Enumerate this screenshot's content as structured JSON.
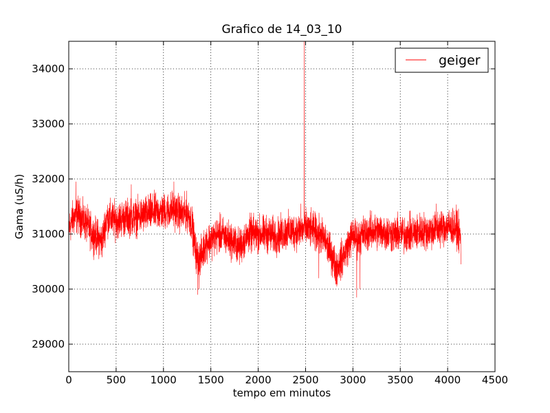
{
  "chart_data": {
    "type": "line",
    "title": "Grafico de 14_03_10",
    "xlabel": "tempo em minutos",
    "ylabel": "Gama (uS/h)",
    "xlim": [
      0,
      4500
    ],
    "ylim": [
      28500,
      34500
    ],
    "xticks": [
      0,
      500,
      1000,
      1500,
      2000,
      2500,
      3000,
      3500,
      4000,
      4500
    ],
    "yticks": [
      29000,
      30000,
      31000,
      32000,
      33000,
      34000
    ],
    "grid": true,
    "legend": {
      "position": "top-right",
      "entries": [
        "geiger"
      ]
    },
    "series": [
      {
        "name": "geiger",
        "color": "#ff0000",
        "x_start": 0,
        "x_end": 4140,
        "noise_amplitude": 160,
        "baseline": [
          [
            0,
            31100
          ],
          [
            50,
            31300
          ],
          [
            100,
            31350
          ],
          [
            150,
            31250
          ],
          [
            200,
            31150
          ],
          [
            250,
            31000
          ],
          [
            300,
            30950
          ],
          [
            350,
            30850
          ],
          [
            400,
            31300
          ],
          [
            500,
            31250
          ],
          [
            600,
            31300
          ],
          [
            700,
            31300
          ],
          [
            800,
            31350
          ],
          [
            900,
            31400
          ],
          [
            1000,
            31400
          ],
          [
            1100,
            31450
          ],
          [
            1200,
            31350
          ],
          [
            1250,
            31400
          ],
          [
            1300,
            31200
          ],
          [
            1340,
            30650
          ],
          [
            1370,
            30550
          ],
          [
            1400,
            30600
          ],
          [
            1450,
            30850
          ],
          [
            1500,
            30900
          ],
          [
            1600,
            31000
          ],
          [
            1700,
            30900
          ],
          [
            1780,
            30800
          ],
          [
            1800,
            30750
          ],
          [
            1900,
            31000
          ],
          [
            2000,
            31000
          ],
          [
            2100,
            31000
          ],
          [
            2200,
            30950
          ],
          [
            2300,
            31050
          ],
          [
            2400,
            31050
          ],
          [
            2500,
            31100
          ],
          [
            2600,
            31050
          ],
          [
            2700,
            30900
          ],
          [
            2780,
            30600
          ],
          [
            2820,
            30400
          ],
          [
            2850,
            30450
          ],
          [
            2900,
            30600
          ],
          [
            2950,
            30800
          ],
          [
            3000,
            31000
          ],
          [
            3050,
            30900
          ],
          [
            3100,
            31000
          ],
          [
            3200,
            31050
          ],
          [
            3300,
            31050
          ],
          [
            3400,
            31000
          ],
          [
            3500,
            31000
          ],
          [
            3600,
            31000
          ],
          [
            3700,
            31050
          ],
          [
            3800,
            31050
          ],
          [
            3900,
            31100
          ],
          [
            4000,
            31150
          ],
          [
            4100,
            31100
          ],
          [
            4140,
            30900
          ]
        ],
        "spikes": [
          [
            75,
            31950
          ],
          [
            95,
            31600
          ],
          [
            660,
            31900
          ],
          [
            1110,
            31950
          ],
          [
            1360,
            29900
          ],
          [
            1375,
            30000
          ],
          [
            2450,
            31550
          ],
          [
            2485,
            34500
          ],
          [
            2490,
            31400
          ],
          [
            2640,
            30200
          ],
          [
            2830,
            30050
          ],
          [
            3040,
            29850
          ],
          [
            3075,
            30000
          ],
          [
            3880,
            31550
          ],
          [
            4140,
            30450
          ]
        ]
      }
    ]
  }
}
